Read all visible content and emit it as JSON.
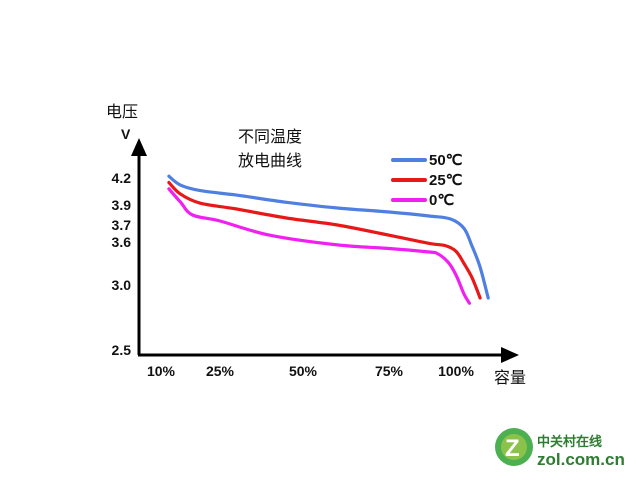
{
  "chart_data": {
    "type": "line",
    "title_lines": [
      "不同温度",
      "放电曲线"
    ],
    "ylabel": "电压",
    "ylabel_unit": "V",
    "xlabel": "容量",
    "yticks": [
      {
        "label": "4.2",
        "value": 4.2
      },
      {
        "label": "3.9",
        "value": 3.9
      },
      {
        "label": "3.7",
        "value": 3.7
      },
      {
        "label": "3.6",
        "value": 3.6
      },
      {
        "label": "3.0",
        "value": 3.0
      },
      {
        "label": "2.5",
        "value": 2.5
      }
    ],
    "xticks": [
      {
        "label": "10%",
        "value": 10
      },
      {
        "label": "25%",
        "value": 25
      },
      {
        "label": "50%",
        "value": 50
      },
      {
        "label": "75%",
        "value": 75
      },
      {
        "label": "100%",
        "value": 100
      }
    ],
    "legend_position": "top-right",
    "series": [
      {
        "name": "50℃",
        "color": "#4f7fe0",
        "points": [
          [
            12,
            4.22
          ],
          [
            15,
            4.12
          ],
          [
            20,
            4.06
          ],
          [
            30,
            4.01
          ],
          [
            45,
            3.93
          ],
          [
            60,
            3.87
          ],
          [
            75,
            3.83
          ],
          [
            90,
            3.79
          ],
          [
            98,
            3.76
          ],
          [
            103,
            3.68
          ],
          [
            106,
            3.54
          ],
          [
            109,
            3.25
          ],
          [
            112,
            2.9
          ]
        ]
      },
      {
        "name": "25℃",
        "color": "#e81818",
        "points": [
          [
            12,
            4.15
          ],
          [
            15,
            4.02
          ],
          [
            20,
            3.92
          ],
          [
            30,
            3.86
          ],
          [
            45,
            3.77
          ],
          [
            60,
            3.7
          ],
          [
            75,
            3.64
          ],
          [
            90,
            3.58
          ],
          [
            96,
            3.55
          ],
          [
            100,
            3.47
          ],
          [
            103,
            3.3
          ],
          [
            106,
            3.1
          ],
          [
            109,
            2.9
          ]
        ]
      },
      {
        "name": "0℃",
        "color": "#f020f0",
        "points": [
          [
            12,
            4.08
          ],
          [
            15,
            3.93
          ],
          [
            18,
            3.8
          ],
          [
            25,
            3.74
          ],
          [
            40,
            3.64
          ],
          [
            60,
            3.56
          ],
          [
            75,
            3.51
          ],
          [
            90,
            3.46
          ],
          [
            93,
            3.44
          ],
          [
            97,
            3.32
          ],
          [
            100,
            3.14
          ],
          [
            103,
            2.93
          ],
          [
            105,
            2.86
          ]
        ]
      }
    ]
  },
  "watermark": {
    "brand_cn": "中关村在线",
    "brand_en": "zol.com.cn",
    "logo_letter": "Z"
  }
}
